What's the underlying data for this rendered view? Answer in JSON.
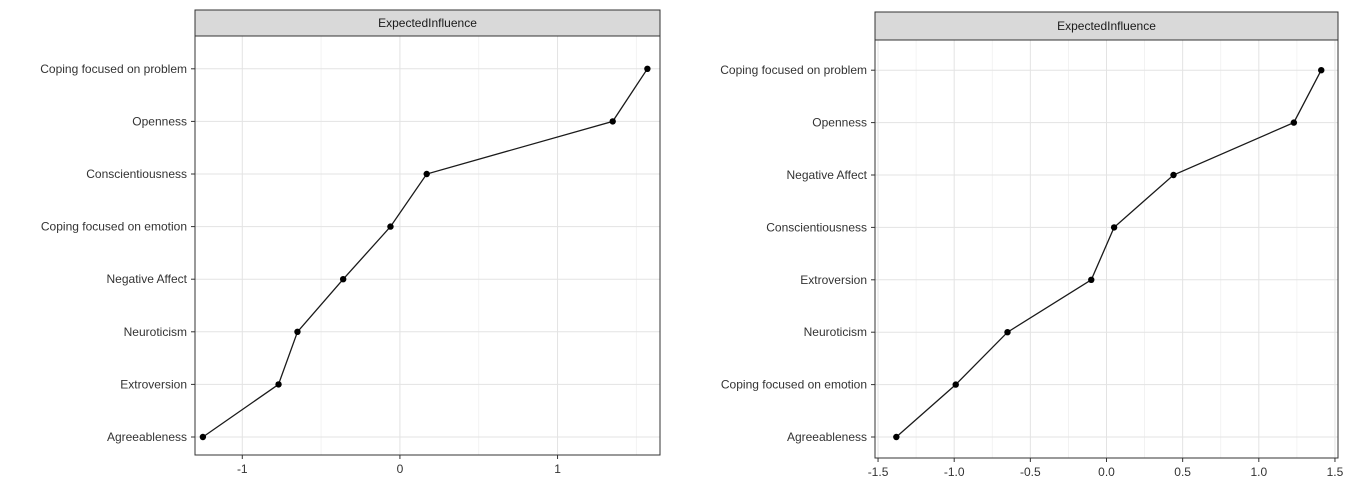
{
  "chart_data": [
    {
      "type": "line",
      "strip_title": "ExpectedInfluence",
      "categories": [
        "Agreeableness",
        "Extroversion",
        "Neuroticism",
        "Negative Affect",
        "Coping focused on emotion",
        "Conscientiousness",
        "Openness",
        "Coping focused on problem"
      ],
      "values": [
        -1.25,
        -0.77,
        -0.65,
        -0.36,
        -0.06,
        0.17,
        1.35,
        1.57
      ],
      "xlim": [
        -1.3,
        1.65
      ],
      "x_ticks": [
        -1,
        0,
        1
      ],
      "x_tick_labels": [
        "-1",
        "0",
        "1"
      ],
      "grid": true
    },
    {
      "type": "line",
      "strip_title": "ExpectedInfluence",
      "categories": [
        "Agreeableness",
        "Coping focused on emotion",
        "Neuroticism",
        "Extroversion",
        "Conscientiousness",
        "Negative Affect",
        "Openness",
        "Coping focused on problem"
      ],
      "values": [
        -1.38,
        -0.99,
        -0.65,
        -0.1,
        0.05,
        0.44,
        1.23,
        1.41
      ],
      "xlim": [
        -1.52,
        1.52
      ],
      "x_ticks": [
        -1.5,
        -1.0,
        -0.5,
        0.0,
        0.5,
        1.0,
        1.5
      ],
      "x_tick_labels": [
        "-1.5",
        "-1.0",
        "-0.5",
        "0.0",
        "0.5",
        "1.0",
        "1.5"
      ],
      "grid": true
    }
  ]
}
